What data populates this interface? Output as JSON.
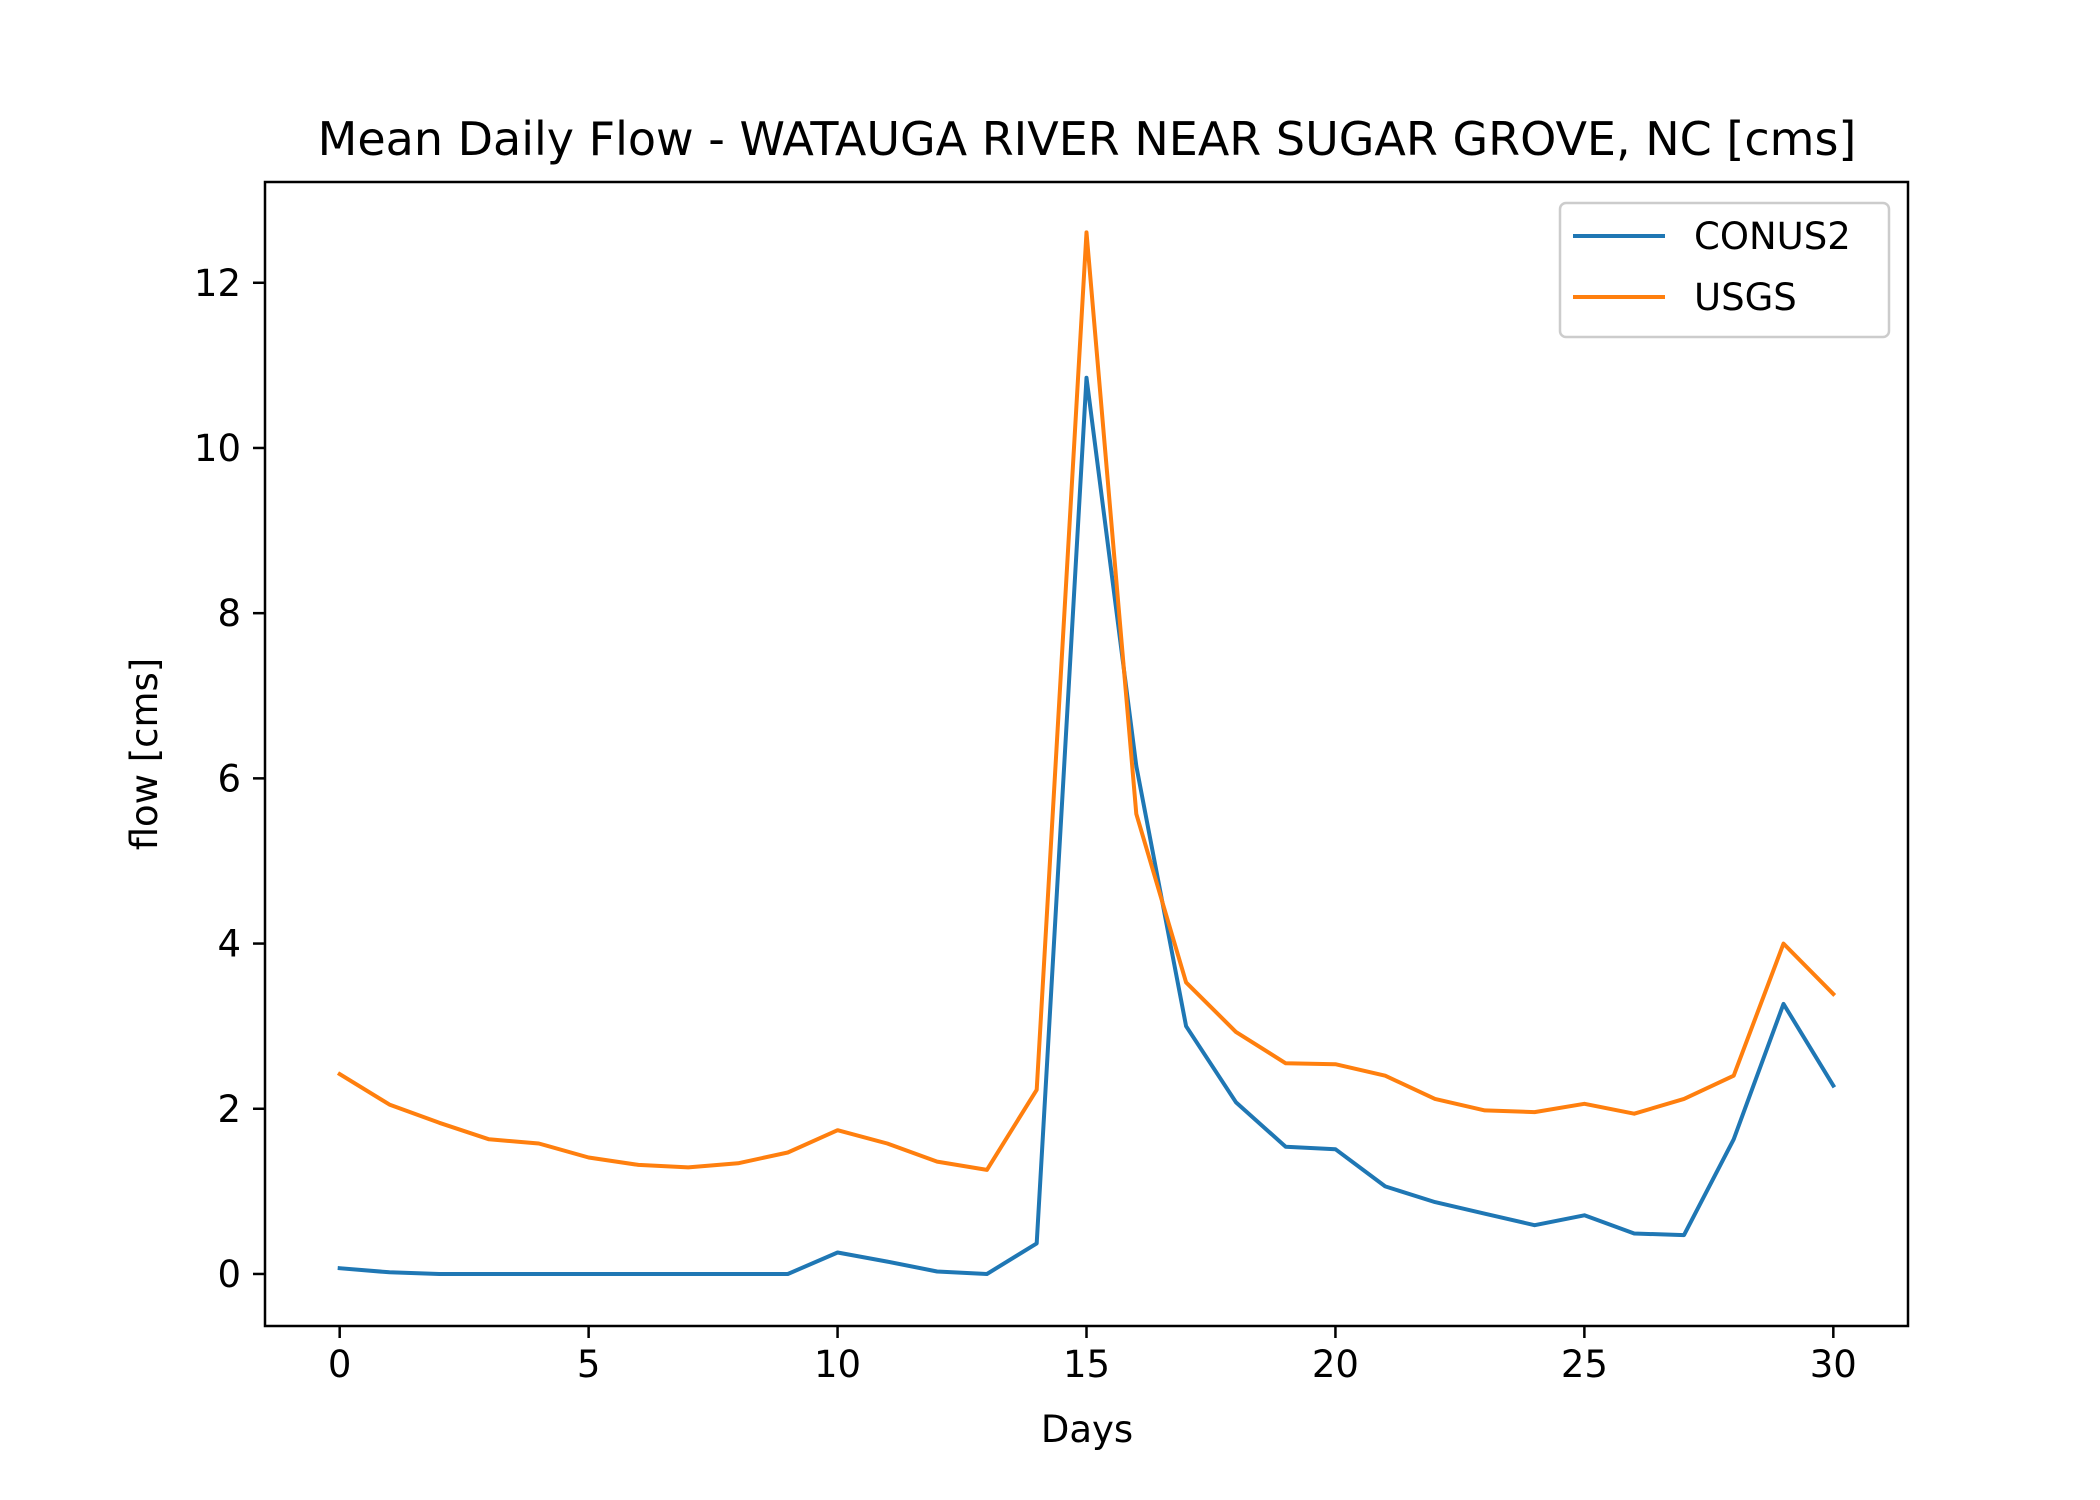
{
  "chart_data": {
    "type": "line",
    "title": "Mean Daily Flow - WATAUGA RIVER NEAR SUGAR GROVE, NC [cms]",
    "xlabel": "Days",
    "ylabel": "flow [cms]",
    "xlim": [
      -1.5,
      31.5
    ],
    "ylim": [
      -0.63,
      13.22
    ],
    "xticks": [
      0,
      5,
      10,
      15,
      20,
      25,
      30
    ],
    "yticks": [
      0,
      2,
      4,
      6,
      8,
      10,
      12
    ],
    "grid": false,
    "legend_position": "top-right",
    "x": [
      0,
      1,
      2,
      3,
      4,
      5,
      6,
      7,
      8,
      9,
      10,
      11,
      12,
      13,
      14,
      15,
      16,
      17,
      18,
      19,
      20,
      21,
      22,
      23,
      24,
      25,
      26,
      27,
      28,
      29,
      30
    ],
    "series": [
      {
        "name": "CONUS2",
        "color": "#1f77b4",
        "values": [
          0.07,
          0.02,
          0.0,
          0.0,
          0.0,
          0.0,
          0.0,
          0.0,
          0.0,
          0.0,
          0.26,
          0.15,
          0.03,
          0.0,
          0.37,
          10.85,
          6.15,
          3.0,
          2.08,
          1.54,
          1.51,
          1.06,
          0.87,
          0.73,
          0.59,
          0.71,
          0.49,
          0.47,
          1.63,
          3.27,
          2.28
        ]
      },
      {
        "name": "USGS",
        "color": "#ff7f0e",
        "values": [
          2.42,
          2.05,
          1.83,
          1.63,
          1.58,
          1.41,
          1.32,
          1.29,
          1.34,
          1.47,
          1.74,
          1.58,
          1.36,
          1.26,
          2.23,
          12.61,
          5.57,
          3.53,
          2.93,
          2.55,
          2.54,
          2.4,
          2.12,
          1.98,
          1.96,
          2.06,
          1.94,
          2.12,
          2.4,
          4.0,
          3.39
        ]
      }
    ]
  }
}
